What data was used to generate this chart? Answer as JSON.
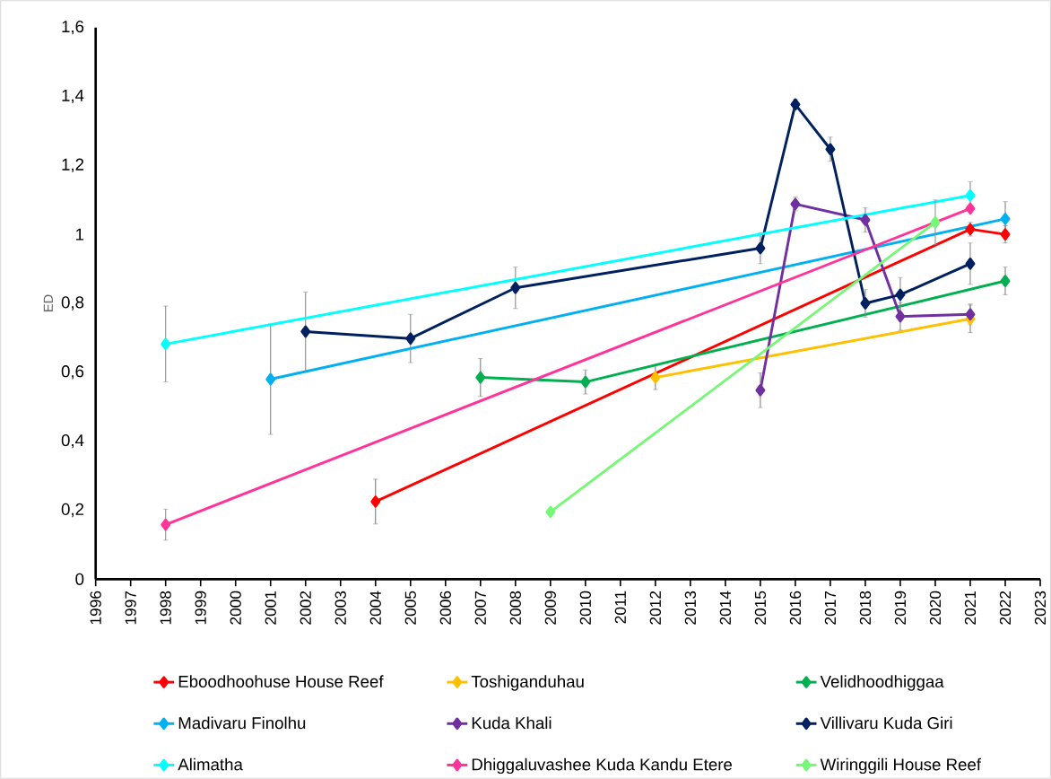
{
  "chart_data": {
    "type": "line",
    "ylabel": "ED",
    "marker": "diamond",
    "legend": "bottom",
    "grid": false,
    "xlim": [
      1996,
      2023
    ],
    "xticks": [
      1996,
      1997,
      1998,
      1999,
      2000,
      2001,
      2002,
      2003,
      2004,
      2005,
      2006,
      2007,
      2008,
      2009,
      2010,
      2011,
      2012,
      2013,
      2014,
      2015,
      2016,
      2017,
      2018,
      2019,
      2020,
      2021,
      2022,
      2023
    ],
    "ylim": [
      0,
      1.6
    ],
    "yticks": [
      0,
      {
        "value": 0.2,
        "label": "0,2"
      },
      {
        "value": 0.4,
        "label": "0,4"
      },
      {
        "value": 0.6,
        "label": "0,6"
      },
      {
        "value": 0.8,
        "label": "0,8"
      },
      1,
      {
        "value": 1.2,
        "label": "1,2"
      },
      {
        "value": 1.4,
        "label": "1,4"
      },
      {
        "value": 1.6,
        "label": "1,6"
      }
    ],
    "series": [
      {
        "name": "Eboodhoohuse House Reef",
        "color": "#ff0000",
        "x": [
          2004,
          2021,
          2022
        ],
        "values": [
          0.225,
          1.015,
          1.0
        ],
        "errors": [
          0.065,
          0.02,
          0.025
        ]
      },
      {
        "name": "Toshiganduhau",
        "color": "#ffc000",
        "x": [
          2012,
          2021
        ],
        "values": [
          0.585,
          0.755
        ],
        "errors": [
          0.035,
          0.04
        ]
      },
      {
        "name": "Velidhoodhiggaa",
        "color": "#00b050",
        "x": [
          2007,
          2010,
          2022
        ],
        "values": [
          0.585,
          0.572,
          0.865
        ],
        "errors": [
          0.055,
          0.035,
          0.04
        ]
      },
      {
        "name": "Madivaru Finolhu",
        "color": "#00b0f0",
        "x": [
          2001,
          2022
        ],
        "values": [
          0.58,
          1.045
        ],
        "errors": [
          0.16,
          0.05
        ]
      },
      {
        "name": "Kuda Khali",
        "color": "#7030a0",
        "x": [
          2015,
          2016,
          2018,
          2019,
          2021
        ],
        "values": [
          0.548,
          1.088,
          1.042,
          0.762,
          0.768
        ],
        "errors": [
          0.05,
          0.02,
          0.035,
          0.04,
          0.03
        ]
      },
      {
        "name": "Villivaru Kuda Giri",
        "color": "#002060",
        "x": [
          2002,
          2005,
          2008,
          2015,
          2016,
          2017,
          2018,
          2019,
          2021
        ],
        "values": [
          0.718,
          0.698,
          0.845,
          0.96,
          1.377,
          1.247,
          0.8,
          0.825,
          0.915
        ],
        "errors": [
          0.115,
          0.07,
          0.06,
          0.045,
          0.015,
          0.035,
          0.04,
          0.05,
          0.06
        ]
      },
      {
        "name": "Alimatha",
        "color": "#00ffff",
        "x": [
          1998,
          2021
        ],
        "values": [
          0.682,
          1.113
        ],
        "errors": [
          0.11,
          0.04
        ]
      },
      {
        "name": "Dhiggaluvashee Kuda Kandu Etere",
        "color": "#ff3399",
        "x": [
          1998,
          2021
        ],
        "values": [
          0.158,
          1.075
        ],
        "errors": [
          0.045,
          null
        ]
      },
      {
        "name": "Wiringgili House Reef",
        "color": "#77f777",
        "x": [
          2009,
          2020
        ],
        "values": [
          0.195,
          1.035
        ],
        "errors": [
          null,
          0.065
        ]
      }
    ]
  }
}
